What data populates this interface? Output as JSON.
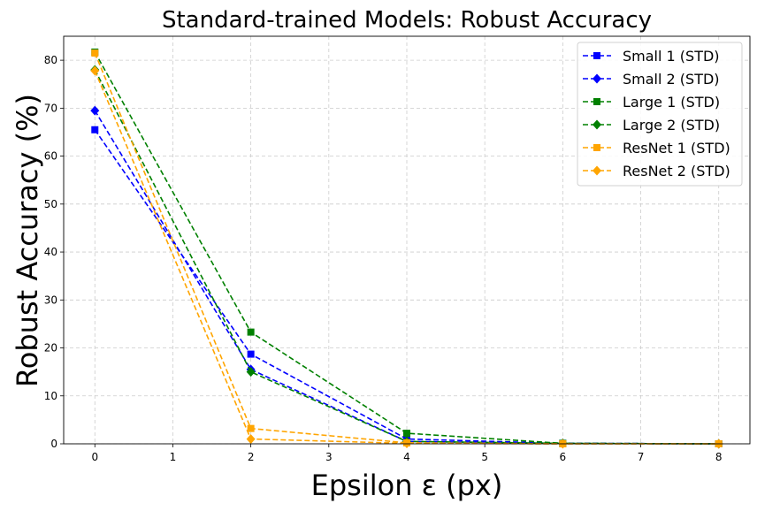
{
  "chart_data": {
    "type": "line",
    "title": "Standard-trained Models: Robust Accuracy",
    "xlabel": "Epsilon ε (px)",
    "ylabel": "Robust Accuracy (%)",
    "xlim": [
      -0.4,
      8.4
    ],
    "ylim": [
      0,
      85
    ],
    "xticks": [
      0,
      1,
      2,
      3,
      4,
      5,
      6,
      7,
      8
    ],
    "yticks": [
      0,
      10,
      20,
      30,
      40,
      50,
      60,
      70,
      80
    ],
    "x": [
      0,
      2,
      4,
      6,
      8
    ],
    "grid": true,
    "legend_position": "top-right",
    "series": [
      {
        "name": "Small 1 (STD)",
        "color": "#0000ff",
        "marker": "square",
        "values": [
          65.5,
          18.7,
          1.0,
          0.1,
          0.0
        ]
      },
      {
        "name": "Small 2 (STD)",
        "color": "#0000ff",
        "marker": "diamond",
        "values": [
          69.5,
          15.5,
          0.5,
          0.1,
          0.0
        ]
      },
      {
        "name": "Large 1 (STD)",
        "color": "#008000",
        "marker": "square",
        "values": [
          81.7,
          23.3,
          2.2,
          0.1,
          0.0
        ]
      },
      {
        "name": "Large 2 (STD)",
        "color": "#008000",
        "marker": "diamond",
        "values": [
          78.0,
          15.0,
          0.5,
          0.1,
          0.0
        ]
      },
      {
        "name": "ResNet 1 (STD)",
        "color": "#ffa500",
        "marker": "square",
        "values": [
          81.5,
          3.2,
          0.2,
          0.0,
          0.0
        ]
      },
      {
        "name": "ResNet 2 (STD)",
        "color": "#ffa500",
        "marker": "diamond",
        "values": [
          77.8,
          1.0,
          0.1,
          0.0,
          0.0
        ]
      }
    ]
  }
}
